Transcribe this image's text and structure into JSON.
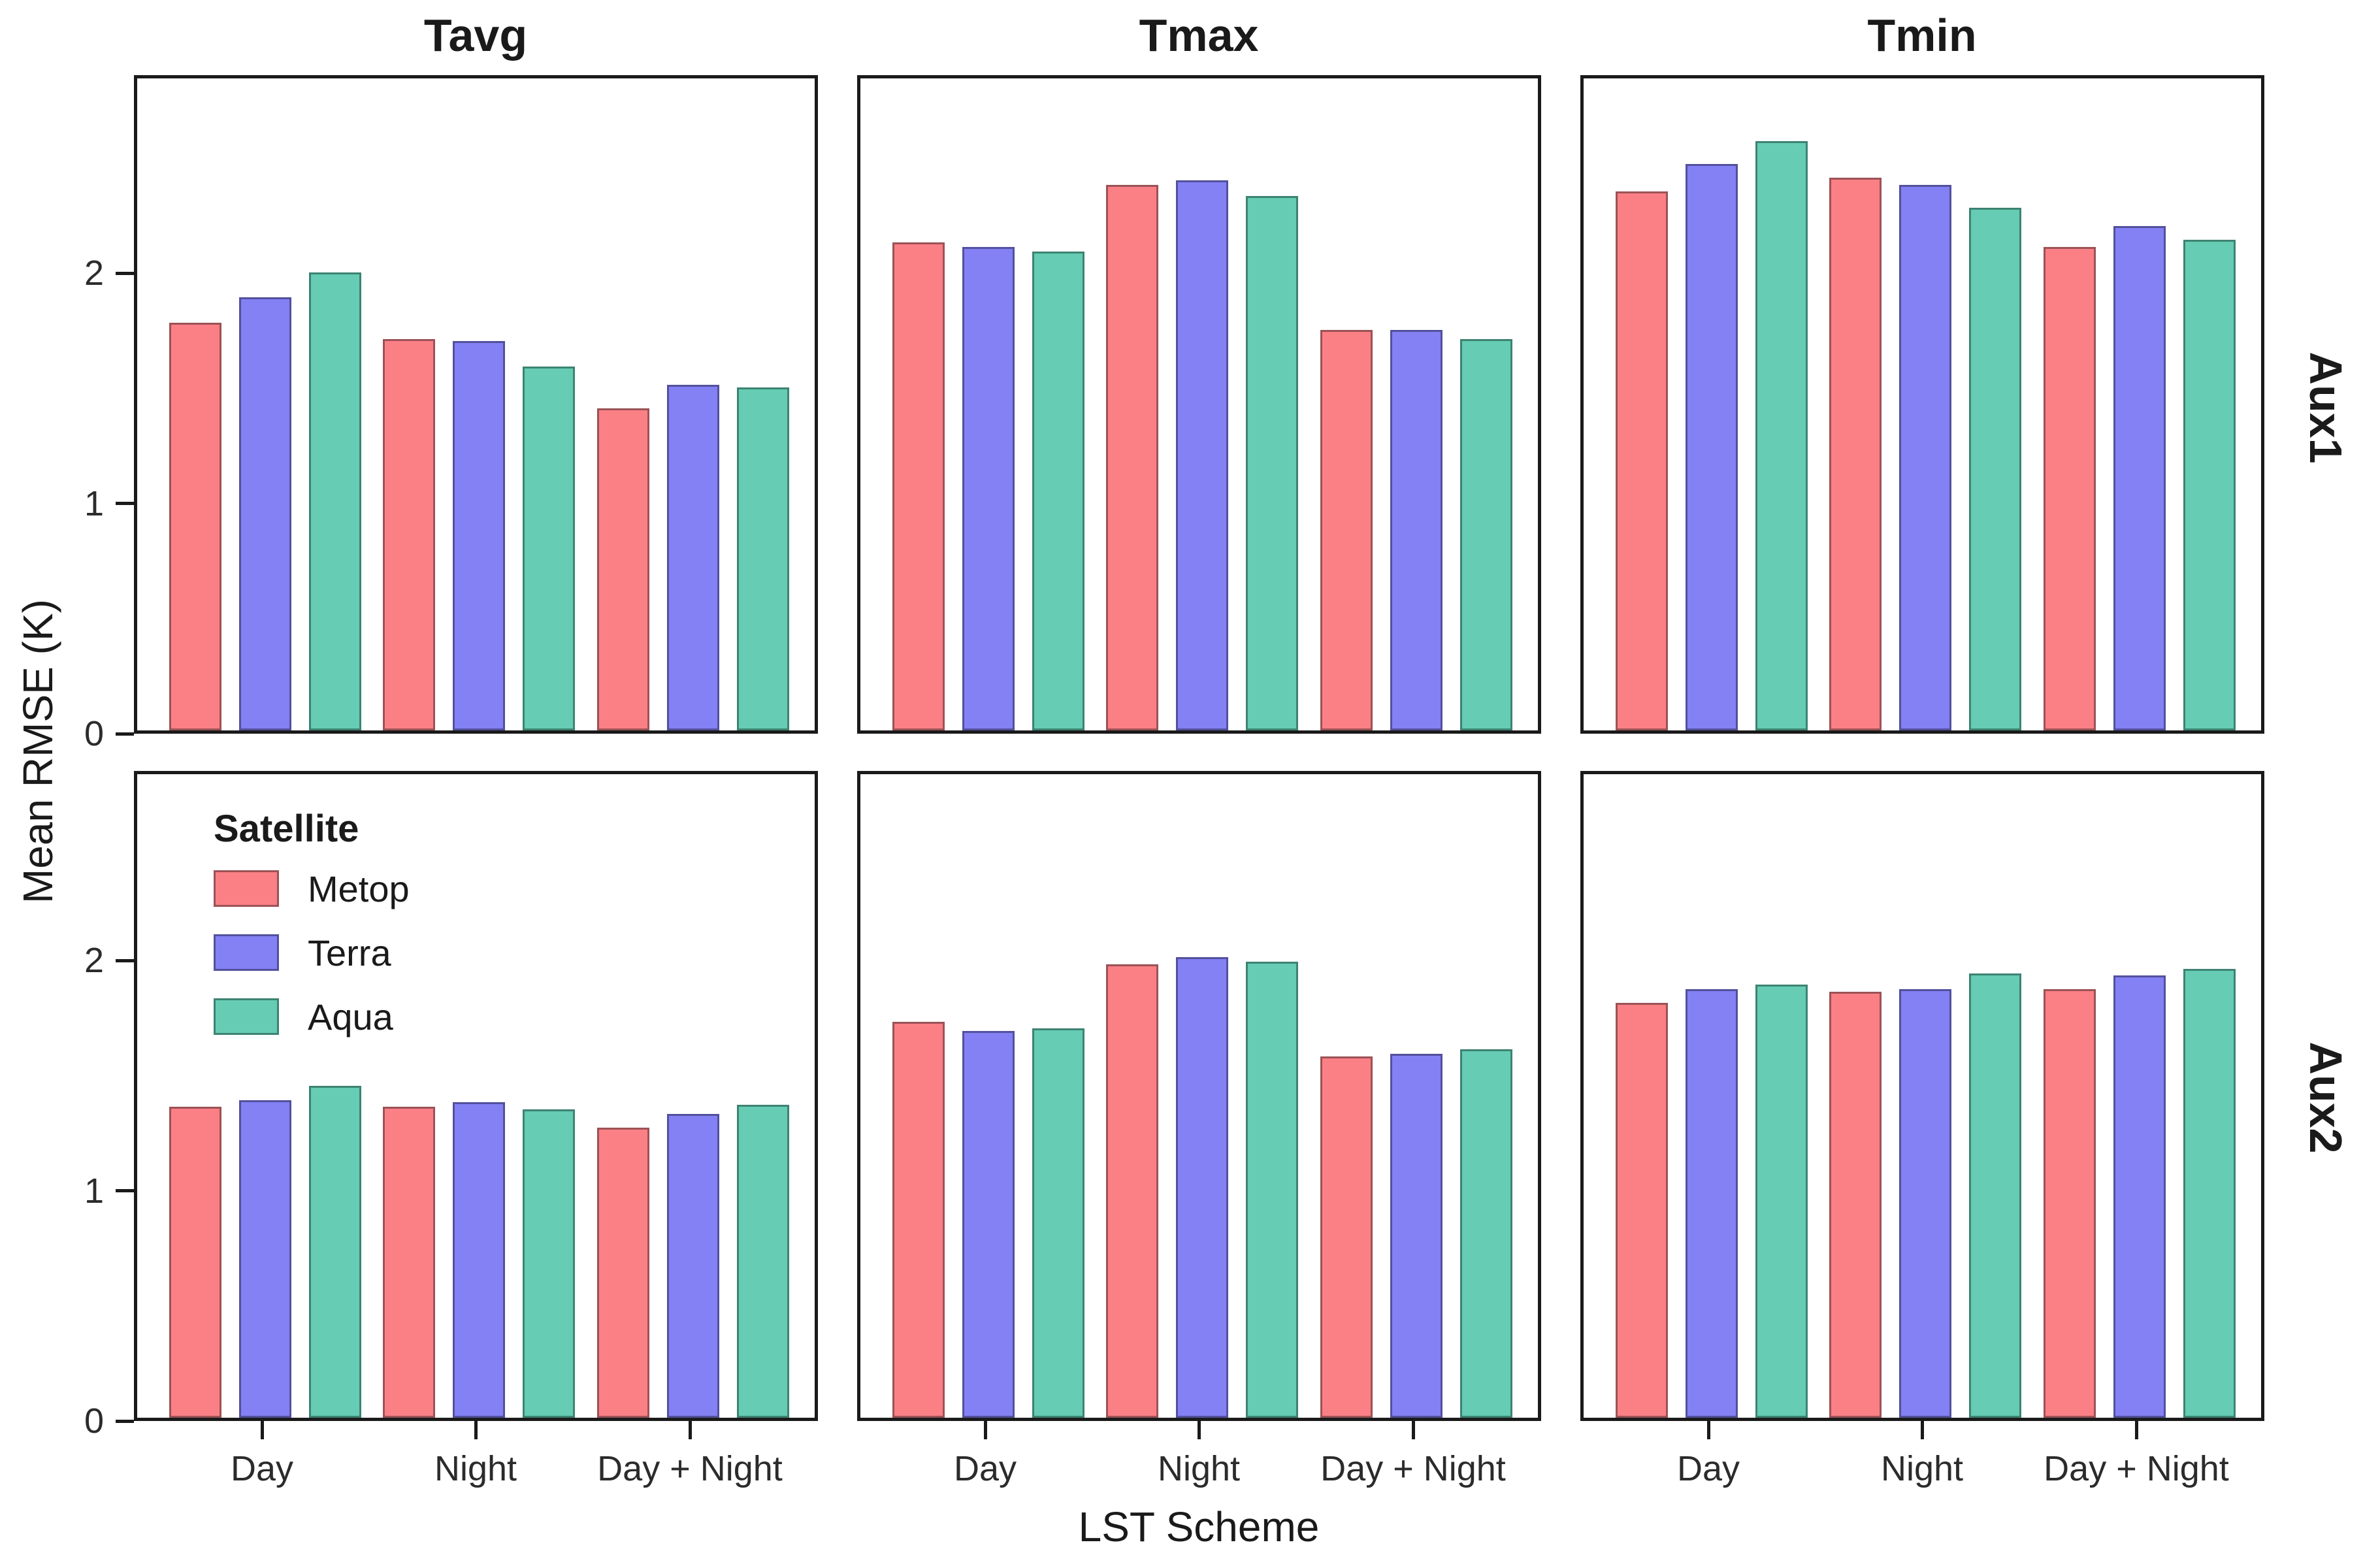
{
  "figure": {
    "y_axis_title": "Mean RMSE (K)",
    "x_axis_title": "LST Scheme",
    "facet_columns": [
      "Tavg",
      "Tmax",
      "Tmin"
    ],
    "facet_rows": [
      "Aux1",
      "Aux2"
    ],
    "legend": {
      "title": "Satellite",
      "entries": [
        {
          "label": "Metop",
          "color": "#FA8086",
          "border_color": "#9C5256"
        },
        {
          "label": "Terra",
          "color": "#8381F4",
          "border_color": "#53519C"
        },
        {
          "label": "Aqua",
          "color": "#66CCB4",
          "border_color": "#3D8372"
        }
      ]
    }
  },
  "chart_data": {
    "type": "bar",
    "title": "",
    "xlabel": "LST Scheme",
    "ylabel": "Mean RMSE (K)",
    "categories": [
      "Day",
      "Night",
      "Day + Night"
    ],
    "series_names": [
      "Metop",
      "Terra",
      "Aqua"
    ],
    "y_ticks": [
      0,
      1,
      2
    ],
    "ylim": [
      0,
      2.86
    ],
    "grid": false,
    "legend_position": "inside top-left of bottom-left panel",
    "colors": {
      "Metop": "#FA8086",
      "Terra": "#8381F4",
      "Aqua": "#66CCB4"
    },
    "border_colors": {
      "Metop": "#9C5256",
      "Terra": "#53519C",
      "Aqua": "#3D8372"
    },
    "facets": [
      {
        "row": "Aux1",
        "col": "Tavg",
        "series": [
          {
            "name": "Metop",
            "values": [
              1.77,
              1.7,
              1.4
            ]
          },
          {
            "name": "Terra",
            "values": [
              1.88,
              1.69,
              1.5
            ]
          },
          {
            "name": "Aqua",
            "values": [
              1.99,
              1.58,
              1.49
            ]
          }
        ]
      },
      {
        "row": "Aux1",
        "col": "Tmax",
        "series": [
          {
            "name": "Metop",
            "values": [
              2.12,
              2.37,
              1.74
            ]
          },
          {
            "name": "Terra",
            "values": [
              2.1,
              2.39,
              1.74
            ]
          },
          {
            "name": "Aqua",
            "values": [
              2.08,
              2.32,
              1.7
            ]
          }
        ]
      },
      {
        "row": "Aux1",
        "col": "Tmin",
        "series": [
          {
            "name": "Metop",
            "values": [
              2.34,
              2.4,
              2.1
            ]
          },
          {
            "name": "Terra",
            "values": [
              2.46,
              2.37,
              2.19
            ]
          },
          {
            "name": "Aqua",
            "values": [
              2.56,
              2.27,
              2.13
            ]
          }
        ]
      },
      {
        "row": "Aux2",
        "col": "Tavg",
        "series": [
          {
            "name": "Metop",
            "values": [
              1.35,
              1.35,
              1.26
            ]
          },
          {
            "name": "Terra",
            "values": [
              1.38,
              1.37,
              1.32
            ]
          },
          {
            "name": "Aqua",
            "values": [
              1.44,
              1.34,
              1.36
            ]
          }
        ]
      },
      {
        "row": "Aux2",
        "col": "Tmax",
        "series": [
          {
            "name": "Metop",
            "values": [
              1.72,
              1.97,
              1.57
            ]
          },
          {
            "name": "Terra",
            "values": [
              1.68,
              2.0,
              1.58
            ]
          },
          {
            "name": "Aqua",
            "values": [
              1.69,
              1.98,
              1.6
            ]
          }
        ]
      },
      {
        "row": "Aux2",
        "col": "Tmin",
        "series": [
          {
            "name": "Metop",
            "values": [
              1.8,
              1.85,
              1.86
            ]
          },
          {
            "name": "Terra",
            "values": [
              1.86,
              1.86,
              1.92
            ]
          },
          {
            "name": "Aqua",
            "values": [
              1.88,
              1.93,
              1.95
            ]
          }
        ]
      }
    ]
  }
}
